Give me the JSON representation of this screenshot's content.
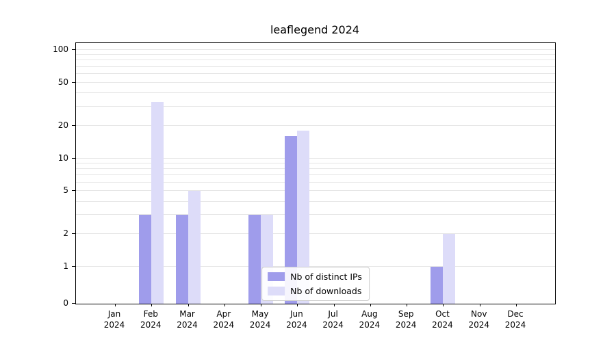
{
  "chart_data": {
    "type": "bar",
    "title": "leaflegend 2024",
    "categories": [
      "Jan",
      "Feb",
      "Mar",
      "Apr",
      "May",
      "Jun",
      "Jul",
      "Aug",
      "Sep",
      "Oct",
      "Nov",
      "Dec"
    ],
    "category_year": "2024",
    "series": [
      {
        "name": "Nb of distinct IPs",
        "color": "#9f9ceb",
        "values": [
          0,
          3,
          3,
          0,
          3,
          16,
          0,
          0,
          0,
          1,
          0,
          0
        ]
      },
      {
        "name": "Nb of downloads",
        "color": "#dddcf9",
        "values": [
          0,
          33,
          5,
          0,
          3,
          18,
          0,
          0,
          0,
          2,
          0,
          0
        ]
      }
    ],
    "xlabel": "",
    "ylabel": "",
    "yscale": "symlog",
    "yticks": [
      0,
      1,
      2,
      5,
      10,
      20,
      50,
      100
    ],
    "ylim": [
      0,
      120
    ],
    "grid": true,
    "grid_color": "#e6e6e6",
    "legend_position": "lower center"
  }
}
